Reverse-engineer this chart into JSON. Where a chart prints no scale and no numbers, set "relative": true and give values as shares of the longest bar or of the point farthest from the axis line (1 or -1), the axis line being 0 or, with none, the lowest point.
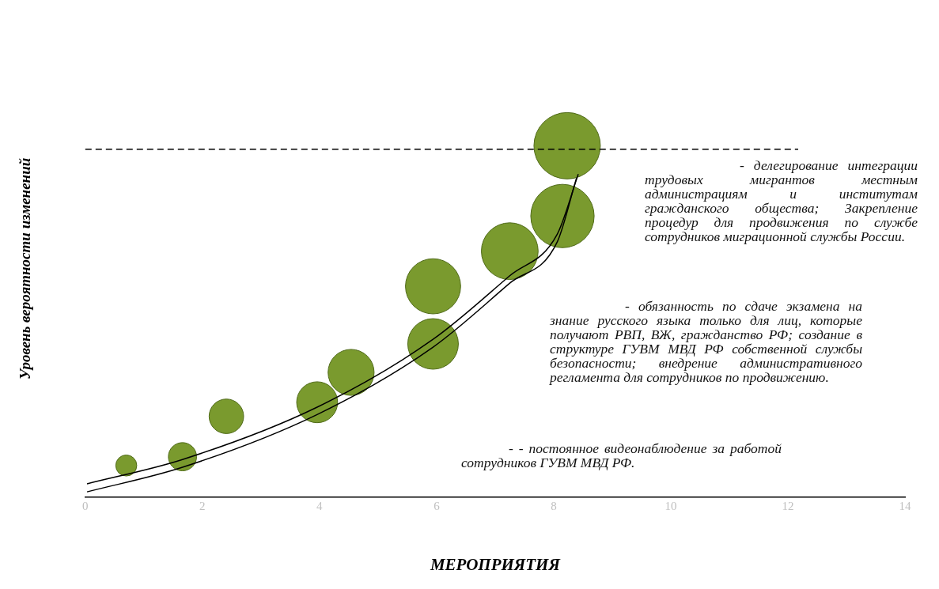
{
  "chart_data": {
    "type": "bubble",
    "relative": true,
    "xlabel": "МЕРОПРИЯТИЯ",
    "ylabel": "Уровень вероятности изменений",
    "xlim": [
      0,
      14
    ],
    "xticks": [
      0,
      2,
      4,
      6,
      8,
      10,
      12,
      14
    ],
    "grid": false,
    "legend": false,
    "series": [
      {
        "type": "bubble",
        "color": "#7a9a2e",
        "x": [
          0.7,
          1.66,
          2.41,
          3.96,
          4.54,
          5.94,
          5.94,
          7.25,
          8.15,
          8.23
        ],
        "values": [
          0.09,
          0.115,
          0.23,
          0.27,
          0.355,
          0.436,
          0.6,
          0.7,
          0.8,
          1.0
        ],
        "sizes": [
          0.1,
          0.18,
          0.27,
          0.38,
          0.48,
          0.58,
          0.69,
          0.73,
          0.91,
          1
        ]
      },
      {
        "type": "line",
        "color": "#000000",
        "x": [
          0.03,
          1.66,
          3.96,
          5.94,
          7.25,
          8.06,
          8.42
        ],
        "values": [
          0.038,
          0.107,
          0.256,
          0.449,
          0.63,
          0.748,
          0.919
        ]
      },
      {
        "type": "line",
        "color": "#000000",
        "x": [
          0.03,
          1.66,
          3.96,
          5.94,
          7.25,
          8.06,
          8.39
        ],
        "values": [
          0.015,
          0.085,
          0.235,
          0.427,
          0.609,
          0.726,
          0.908
        ]
      }
    ],
    "ref_lines": [
      {
        "axis": "y",
        "value": 0.99,
        "color": "#000000",
        "line_style": "dashed"
      }
    ],
    "annotations": [
      "- делегирование интеграции трудовых мигрантов местным администрациям и институтам гражданского общества; Закрепление процедур для продвижения по службе сотрудников миграционной службы России.",
      "- обязанность по сдаче экзамена на знание русского языка только для лиц, которые получают РВП, ВЖ, гражданство РФ; создание в структуре ГУВМ МВД РФ собственной службы безопасности; внедрение административного регламента для сотрудников по продвижению.",
      "- - постоянное видеонаблюдение за работой сотрудников ГУВМ МВД РФ."
    ]
  }
}
